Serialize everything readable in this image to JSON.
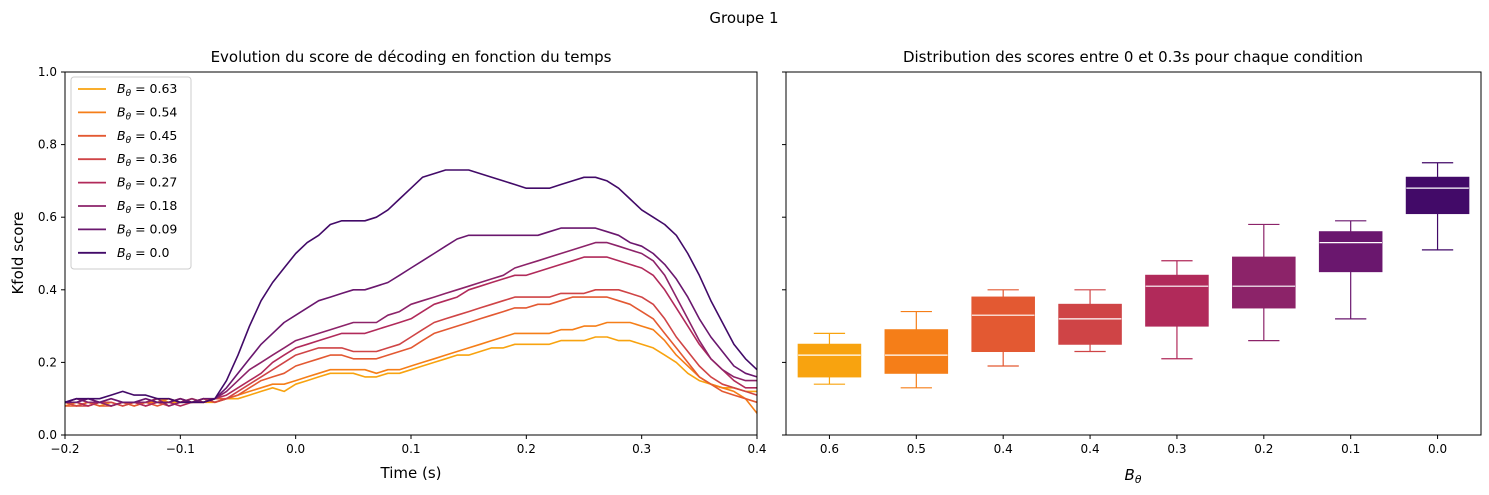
{
  "suptitle": "Groupe 1",
  "chart_data": [
    {
      "type": "line",
      "title": "Evolution du score de décoding en fonction du temps",
      "xlabel": "Time (s)",
      "ylabel": "Kfold score",
      "xlim": [
        -0.2,
        0.4
      ],
      "ylim": [
        0.0,
        1.0
      ],
      "xticks": [
        "−0.2",
        "−0.1",
        "0.0",
        "0.1",
        "0.2",
        "0.3",
        "0.4"
      ],
      "yticks": [
        "0.0",
        "0.2",
        "0.4",
        "0.6",
        "0.8",
        "1.0"
      ],
      "grid": false,
      "legend_position": "top-left",
      "x": [
        -0.2,
        -0.19,
        -0.18,
        -0.17,
        -0.16,
        -0.15,
        -0.14,
        -0.13,
        -0.12,
        -0.11,
        -0.1,
        -0.09,
        -0.08,
        -0.07,
        -0.06,
        -0.05,
        -0.04,
        -0.03,
        -0.02,
        -0.01,
        0.0,
        0.01,
        0.02,
        0.03,
        0.04,
        0.05,
        0.06,
        0.07,
        0.08,
        0.09,
        0.1,
        0.11,
        0.12,
        0.13,
        0.14,
        0.15,
        0.16,
        0.17,
        0.18,
        0.19,
        0.2,
        0.21,
        0.22,
        0.23,
        0.24,
        0.25,
        0.26,
        0.27,
        0.28,
        0.29,
        0.3,
        0.31,
        0.32,
        0.33,
        0.34,
        0.35,
        0.36,
        0.37,
        0.38,
        0.39,
        0.4
      ],
      "series": [
        {
          "name": "B_θ = 0.63",
          "color": "#f8a30f",
          "values": [
            0.09,
            0.08,
            0.09,
            0.08,
            0.09,
            0.08,
            0.09,
            0.09,
            0.1,
            0.09,
            0.09,
            0.1,
            0.09,
            0.09,
            0.1,
            0.1,
            0.11,
            0.12,
            0.13,
            0.12,
            0.14,
            0.15,
            0.16,
            0.17,
            0.17,
            0.17,
            0.16,
            0.16,
            0.17,
            0.17,
            0.18,
            0.19,
            0.2,
            0.21,
            0.22,
            0.22,
            0.23,
            0.24,
            0.24,
            0.25,
            0.25,
            0.25,
            0.25,
            0.26,
            0.26,
            0.26,
            0.27,
            0.27,
            0.26,
            0.26,
            0.25,
            0.24,
            0.22,
            0.2,
            0.17,
            0.15,
            0.14,
            0.13,
            0.13,
            0.12,
            0.12
          ]
        },
        {
          "name": "B_θ = 0.54",
          "color": "#f57e18",
          "values": [
            0.08,
            0.09,
            0.08,
            0.09,
            0.08,
            0.09,
            0.08,
            0.09,
            0.09,
            0.1,
            0.09,
            0.09,
            0.1,
            0.09,
            0.1,
            0.11,
            0.12,
            0.13,
            0.14,
            0.14,
            0.15,
            0.16,
            0.17,
            0.18,
            0.18,
            0.18,
            0.18,
            0.17,
            0.18,
            0.18,
            0.19,
            0.2,
            0.21,
            0.22,
            0.23,
            0.24,
            0.25,
            0.26,
            0.27,
            0.28,
            0.28,
            0.28,
            0.28,
            0.29,
            0.29,
            0.3,
            0.3,
            0.31,
            0.31,
            0.31,
            0.3,
            0.29,
            0.26,
            0.22,
            0.19,
            0.16,
            0.14,
            0.13,
            0.12,
            0.1,
            0.06
          ]
        },
        {
          "name": "B_θ = 0.45",
          "color": "#e35932",
          "values": [
            0.08,
            0.08,
            0.09,
            0.08,
            0.08,
            0.09,
            0.08,
            0.09,
            0.08,
            0.09,
            0.1,
            0.09,
            0.09,
            0.1,
            0.1,
            0.11,
            0.13,
            0.15,
            0.16,
            0.17,
            0.19,
            0.2,
            0.21,
            0.22,
            0.22,
            0.21,
            0.21,
            0.21,
            0.22,
            0.23,
            0.24,
            0.26,
            0.28,
            0.29,
            0.3,
            0.31,
            0.32,
            0.33,
            0.34,
            0.35,
            0.35,
            0.36,
            0.36,
            0.37,
            0.38,
            0.38,
            0.38,
            0.38,
            0.37,
            0.36,
            0.34,
            0.32,
            0.28,
            0.24,
            0.2,
            0.16,
            0.14,
            0.12,
            0.11,
            0.1,
            0.09
          ]
        },
        {
          "name": "B_θ = 0.36",
          "color": "#cf4446",
          "values": [
            0.09,
            0.08,
            0.08,
            0.09,
            0.09,
            0.08,
            0.09,
            0.08,
            0.09,
            0.08,
            0.09,
            0.09,
            0.1,
            0.09,
            0.1,
            0.12,
            0.14,
            0.16,
            0.18,
            0.2,
            0.22,
            0.23,
            0.24,
            0.24,
            0.24,
            0.23,
            0.23,
            0.23,
            0.24,
            0.25,
            0.27,
            0.29,
            0.31,
            0.32,
            0.33,
            0.34,
            0.35,
            0.36,
            0.37,
            0.38,
            0.38,
            0.38,
            0.38,
            0.39,
            0.39,
            0.39,
            0.4,
            0.4,
            0.4,
            0.39,
            0.38,
            0.36,
            0.32,
            0.27,
            0.23,
            0.19,
            0.16,
            0.14,
            0.13,
            0.12,
            0.11
          ]
        },
        {
          "name": "B_θ = 0.27",
          "color": "#b12a5a",
          "values": [
            0.09,
            0.09,
            0.08,
            0.09,
            0.08,
            0.09,
            0.09,
            0.08,
            0.09,
            0.09,
            0.08,
            0.09,
            0.09,
            0.1,
            0.11,
            0.13,
            0.15,
            0.17,
            0.2,
            0.22,
            0.24,
            0.25,
            0.26,
            0.27,
            0.28,
            0.28,
            0.28,
            0.29,
            0.3,
            0.31,
            0.32,
            0.34,
            0.36,
            0.37,
            0.38,
            0.4,
            0.41,
            0.42,
            0.43,
            0.44,
            0.44,
            0.45,
            0.46,
            0.47,
            0.48,
            0.49,
            0.49,
            0.49,
            0.48,
            0.47,
            0.46,
            0.44,
            0.4,
            0.35,
            0.3,
            0.25,
            0.21,
            0.18,
            0.15,
            0.13,
            0.13
          ]
        },
        {
          "name": "B_θ = 0.18",
          "color": "#8c2369",
          "values": [
            0.09,
            0.1,
            0.09,
            0.09,
            0.08,
            0.09,
            0.09,
            0.09,
            0.1,
            0.08,
            0.09,
            0.1,
            0.09,
            0.1,
            0.12,
            0.15,
            0.18,
            0.2,
            0.22,
            0.24,
            0.26,
            0.27,
            0.28,
            0.29,
            0.3,
            0.31,
            0.31,
            0.31,
            0.33,
            0.34,
            0.36,
            0.37,
            0.38,
            0.39,
            0.4,
            0.41,
            0.42,
            0.43,
            0.44,
            0.46,
            0.47,
            0.48,
            0.49,
            0.5,
            0.51,
            0.52,
            0.53,
            0.53,
            0.52,
            0.51,
            0.5,
            0.48,
            0.44,
            0.38,
            0.32,
            0.26,
            0.21,
            0.18,
            0.16,
            0.15,
            0.15
          ]
        },
        {
          "name": "B_θ = 0.09",
          "color": "#6a176e",
          "values": [
            0.09,
            0.09,
            0.1,
            0.09,
            0.1,
            0.09,
            0.09,
            0.1,
            0.09,
            0.09,
            0.1,
            0.09,
            0.1,
            0.1,
            0.13,
            0.17,
            0.21,
            0.25,
            0.28,
            0.31,
            0.33,
            0.35,
            0.37,
            0.38,
            0.39,
            0.4,
            0.4,
            0.41,
            0.42,
            0.44,
            0.46,
            0.48,
            0.5,
            0.52,
            0.54,
            0.55,
            0.55,
            0.55,
            0.55,
            0.55,
            0.55,
            0.55,
            0.56,
            0.57,
            0.57,
            0.57,
            0.57,
            0.56,
            0.55,
            0.53,
            0.52,
            0.5,
            0.47,
            0.43,
            0.38,
            0.32,
            0.27,
            0.23,
            0.19,
            0.17,
            0.16
          ]
        },
        {
          "name": "B_θ = 0.0",
          "color": "#420a68",
          "values": [
            0.09,
            0.1,
            0.1,
            0.1,
            0.11,
            0.12,
            0.11,
            0.11,
            0.1,
            0.1,
            0.09,
            0.09,
            0.09,
            0.1,
            0.15,
            0.22,
            0.3,
            0.37,
            0.42,
            0.46,
            0.5,
            0.53,
            0.55,
            0.58,
            0.59,
            0.59,
            0.59,
            0.6,
            0.62,
            0.65,
            0.68,
            0.71,
            0.72,
            0.73,
            0.73,
            0.73,
            0.72,
            0.71,
            0.7,
            0.69,
            0.68,
            0.68,
            0.68,
            0.69,
            0.7,
            0.71,
            0.71,
            0.7,
            0.68,
            0.65,
            0.62,
            0.6,
            0.58,
            0.55,
            0.5,
            0.44,
            0.37,
            0.31,
            0.25,
            0.21,
            0.18
          ]
        }
      ]
    },
    {
      "type": "box",
      "title": "Distribution des scores entre 0 et 0.3s pour chaque condition",
      "xlabel": "B_θ",
      "ylabel": "",
      "ylim": [
        0.0,
        1.0
      ],
      "categories": [
        "0.6",
        "0.5",
        "0.4",
        "0.4",
        "0.3",
        "0.2",
        "0.1",
        "0.0"
      ],
      "boxes": [
        {
          "color": "#f8a30f",
          "whisker_low": 0.14,
          "q1": 0.16,
          "median": 0.22,
          "q3": 0.25,
          "whisker_high": 0.28
        },
        {
          "color": "#f57e18",
          "whisker_low": 0.13,
          "q1": 0.17,
          "median": 0.22,
          "q3": 0.29,
          "whisker_high": 0.34
        },
        {
          "color": "#e35932",
          "whisker_low": 0.19,
          "q1": 0.23,
          "median": 0.33,
          "q3": 0.38,
          "whisker_high": 0.4
        },
        {
          "color": "#cf4446",
          "whisker_low": 0.23,
          "q1": 0.25,
          "median": 0.32,
          "q3": 0.36,
          "whisker_high": 0.4
        },
        {
          "color": "#b12a5a",
          "whisker_low": 0.21,
          "q1": 0.3,
          "median": 0.41,
          "q3": 0.44,
          "whisker_high": 0.48
        },
        {
          "color": "#8c2369",
          "whisker_low": 0.26,
          "q1": 0.35,
          "median": 0.41,
          "q3": 0.49,
          "whisker_high": 0.58
        },
        {
          "color": "#6a176e",
          "whisker_low": 0.32,
          "q1": 0.45,
          "median": 0.53,
          "q3": 0.56,
          "whisker_high": 0.59
        },
        {
          "color": "#420a68",
          "whisker_low": 0.51,
          "q1": 0.61,
          "median": 0.68,
          "q3": 0.71,
          "whisker_high": 0.75
        }
      ]
    }
  ]
}
